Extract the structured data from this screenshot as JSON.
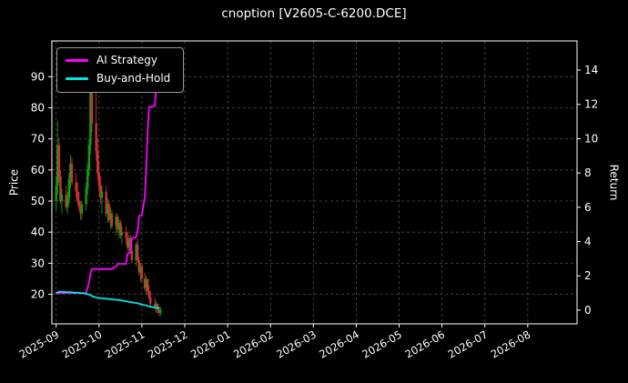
{
  "title": "cnoption [V2605-C-6200.DCE]",
  "chart_data": {
    "type": "candlestick_with_lines",
    "title": "cnoption [V2605-C-6200.DCE]",
    "x_axis": {
      "tick_labels": [
        "2025-09",
        "2025-10",
        "2025-11",
        "2025-12",
        "2026-01",
        "2026-02",
        "2026-03",
        "2026-04",
        "2026-05",
        "2026-06",
        "2026-07",
        "2026-08"
      ]
    },
    "price_axis": {
      "label": "Price",
      "ticks": [
        20,
        30,
        40,
        50,
        60,
        70,
        80,
        90
      ],
      "min": 10.5,
      "max": 101.5
    },
    "return_axis": {
      "label": "Return",
      "ticks": [
        0,
        2,
        4,
        6,
        8,
        10,
        12,
        14
      ],
      "min": -0.8,
      "max": 15.7
    },
    "legend": {
      "items": [
        {
          "label": "AI Strategy",
          "color": "#ff00ff"
        },
        {
          "label": "Buy-and-Hold",
          "color": "#00e5e5"
        }
      ]
    },
    "colors": {
      "background": "#000000",
      "text": "#ffffff",
      "grid": "#4d4d4d",
      "frame": "#ffffff",
      "up": "#0fa00f",
      "down": "#cc3333"
    },
    "candles_ohlc": [
      [
        "2025-09-01",
        50,
        58,
        47,
        55
      ],
      [
        "2025-09-02",
        55,
        76,
        52,
        68
      ],
      [
        "2025-09-03",
        68,
        70,
        56,
        58
      ],
      [
        "2025-09-04",
        58,
        60,
        49,
        50
      ],
      [
        "2025-09-05",
        50,
        54,
        46,
        52
      ],
      [
        "2025-09-08",
        52,
        55,
        47,
        48
      ],
      [
        "2025-09-09",
        48,
        53,
        46,
        51
      ],
      [
        "2025-09-10",
        51,
        59,
        49,
        57
      ],
      [
        "2025-09-11",
        57,
        65,
        54,
        62
      ],
      [
        "2025-09-12",
        62,
        64,
        55,
        56
      ],
      [
        "2025-09-15",
        56,
        59,
        51,
        53
      ],
      [
        "2025-09-16",
        53,
        56,
        49,
        50
      ],
      [
        "2025-09-17",
        50,
        53,
        47,
        48
      ],
      [
        "2025-09-18",
        48,
        50,
        44,
        46
      ],
      [
        "2025-09-19",
        46,
        50,
        44,
        49
      ],
      [
        "2025-09-22",
        49,
        56,
        47,
        54
      ],
      [
        "2025-09-23",
        54,
        62,
        52,
        60
      ],
      [
        "2025-09-24",
        60,
        70,
        58,
        68
      ],
      [
        "2025-09-25",
        68,
        97,
        65,
        92
      ],
      [
        "2025-09-26",
        92,
        94,
        72,
        75
      ],
      [
        "2025-09-29",
        75,
        85,
        63,
        66
      ],
      [
        "2025-09-30",
        66,
        70,
        57,
        59
      ],
      [
        "2025-10-01",
        59,
        63,
        53,
        55
      ],
      [
        "2025-10-02",
        55,
        58,
        49,
        51
      ],
      [
        "2025-10-03",
        51,
        55,
        46,
        53
      ],
      [
        "2025-10-06",
        53,
        55,
        45,
        46
      ],
      [
        "2025-10-07",
        46,
        51,
        43,
        49
      ],
      [
        "2025-10-08",
        49,
        50,
        43,
        44
      ],
      [
        "2025-10-09",
        44,
        48,
        41,
        46
      ],
      [
        "2025-10-10",
        46,
        47,
        41,
        42
      ],
      [
        "2025-10-13",
        42,
        46,
        39,
        45
      ],
      [
        "2025-10-14",
        45,
        46,
        40,
        41
      ],
      [
        "2025-10-15",
        41,
        44,
        38,
        43
      ],
      [
        "2025-10-16",
        43,
        44,
        38,
        39
      ],
      [
        "2025-10-17",
        39,
        42,
        36,
        40
      ],
      [
        "2025-10-20",
        40,
        42,
        36,
        38
      ],
      [
        "2025-10-21",
        38,
        40,
        34,
        35
      ],
      [
        "2025-10-22",
        35,
        39,
        33,
        38
      ],
      [
        "2025-10-23",
        38,
        39,
        33,
        34
      ],
      [
        "2025-10-24",
        34,
        36,
        30,
        31
      ],
      [
        "2025-10-27",
        31,
        37,
        29,
        36
      ],
      [
        "2025-10-28",
        36,
        38,
        30,
        31
      ],
      [
        "2025-10-29",
        31,
        32,
        26,
        27
      ],
      [
        "2025-10-30",
        27,
        30,
        24,
        29
      ],
      [
        "2025-10-31",
        29,
        30,
        24,
        25
      ],
      [
        "2025-11-03",
        25,
        27,
        21,
        22
      ],
      [
        "2025-11-04",
        22,
        26,
        20,
        25
      ],
      [
        "2025-11-05",
        25,
        25,
        20,
        21
      ],
      [
        "2025-11-06",
        21,
        23,
        18,
        19
      ],
      [
        "2025-11-07",
        19,
        21,
        16,
        17
      ],
      [
        "2025-11-10",
        17,
        19,
        15,
        16
      ],
      [
        "2025-11-11",
        16,
        18,
        14,
        17
      ],
      [
        "2025-11-12",
        17,
        17,
        14,
        15
      ],
      [
        "2025-11-13",
        15,
        16,
        13,
        14
      ],
      [
        "2025-11-14",
        14,
        16,
        13,
        15
      ]
    ],
    "series": [
      {
        "name": "AI Strategy",
        "color": "#ff00ff",
        "axis": "return",
        "points": [
          [
            "2025-09-01",
            1.0
          ],
          [
            "2025-09-22",
            1.0
          ],
          [
            "2025-09-24",
            1.6
          ],
          [
            "2025-09-25",
            2.15
          ],
          [
            "2025-09-26",
            2.4
          ],
          [
            "2025-10-10",
            2.4
          ],
          [
            "2025-10-13",
            2.55
          ],
          [
            "2025-10-14",
            2.7
          ],
          [
            "2025-10-20",
            2.7
          ],
          [
            "2025-10-21",
            3.3
          ],
          [
            "2025-10-23",
            3.35
          ],
          [
            "2025-10-24",
            4.2
          ],
          [
            "2025-10-27",
            4.25
          ],
          [
            "2025-10-28",
            4.6
          ],
          [
            "2025-10-29",
            5.5
          ],
          [
            "2025-10-31",
            5.55
          ],
          [
            "2025-11-03",
            6.6
          ],
          [
            "2025-11-04",
            8.2
          ],
          [
            "2025-11-05",
            10.4
          ],
          [
            "2025-11-06",
            11.85
          ],
          [
            "2025-11-10",
            11.9
          ],
          [
            "2025-11-11",
            12.95
          ],
          [
            "2025-11-13",
            13.05
          ]
        ]
      },
      {
        "name": "Buy-and-Hold",
        "color": "#00e5e5",
        "axis": "return",
        "points": [
          [
            "2025-09-01",
            1.0
          ],
          [
            "2025-09-03",
            1.08
          ],
          [
            "2025-09-10",
            1.05
          ],
          [
            "2025-09-19",
            1.0
          ],
          [
            "2025-09-24",
            0.92
          ],
          [
            "2025-09-26",
            0.82
          ],
          [
            "2025-09-30",
            0.72
          ],
          [
            "2025-10-08",
            0.65
          ],
          [
            "2025-10-13",
            0.6
          ],
          [
            "2025-10-17",
            0.57
          ],
          [
            "2025-10-21",
            0.5
          ],
          [
            "2025-10-24",
            0.45
          ],
          [
            "2025-10-28",
            0.4
          ],
          [
            "2025-10-31",
            0.32
          ],
          [
            "2025-11-04",
            0.28
          ],
          [
            "2025-11-06",
            0.22
          ],
          [
            "2025-11-10",
            0.15
          ],
          [
            "2025-11-13",
            0.12
          ]
        ]
      }
    ]
  }
}
